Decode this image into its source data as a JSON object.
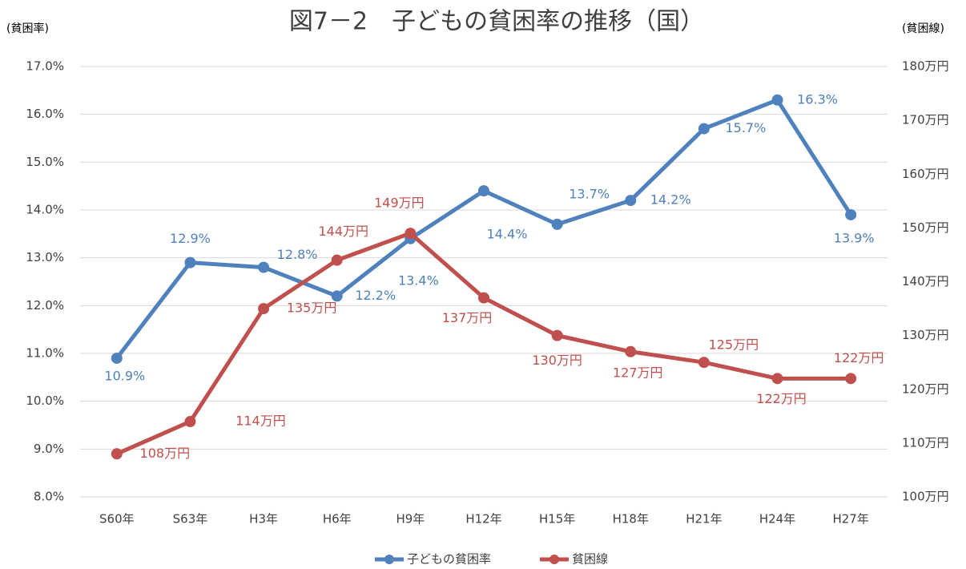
{
  "chart_data": {
    "type": "line",
    "title": "図7－2　子どもの貧困率の推移（国）",
    "y_label": "(貧困率)",
    "y2_label": "(貧困線)",
    "categories": [
      "S60年",
      "S63年",
      "H3年",
      "H6年",
      "H9年",
      "H12年",
      "H15年",
      "H18年",
      "H21年",
      "H24年",
      "H27年"
    ],
    "series": [
      {
        "name": "子どもの貧困率",
        "color": "#4f81bd",
        "values": [
          10.9,
          12.9,
          12.8,
          12.2,
          13.4,
          14.4,
          13.7,
          14.2,
          15.7,
          16.3,
          13.9
        ],
        "value_labels": [
          "10.9%",
          "12.9%",
          "12.8%",
          "12.2%",
          "13.4%",
          "14.4%",
          "13.7%",
          "14.2%",
          "15.7%",
          "16.3%",
          "13.9%"
        ]
      },
      {
        "name": "貧困線",
        "color": "#c0504d",
        "axis": "y2",
        "values": [
          108,
          114,
          135,
          144,
          149,
          137,
          130,
          127,
          125,
          122,
          122
        ],
        "value_labels": [
          "108万円",
          "114万円",
          "135万円",
          "144万円",
          "149万円",
          "137万円",
          "130万円",
          "127万円",
          "125万円",
          "122万円",
          "122万円"
        ]
      }
    ],
    "ylim": [
      8,
      17
    ],
    "yticks": [
      {
        "value": 8,
        "label": "8.0%"
      },
      {
        "value": 9,
        "label": "9.0%"
      },
      {
        "value": 10,
        "label": "10.0%"
      },
      {
        "value": 11,
        "label": "11.0%"
      },
      {
        "value": 12,
        "label": "12.0%"
      },
      {
        "value": 13,
        "label": "13.0%"
      },
      {
        "value": 14,
        "label": "14.0%"
      },
      {
        "value": 15,
        "label": "15.0%"
      },
      {
        "value": 16,
        "label": "16.0%"
      },
      {
        "value": 17,
        "label": "17.0%"
      }
    ],
    "y2lim": [
      100,
      180
    ],
    "y2ticks": [
      {
        "value": 100,
        "label": "100万円"
      },
      {
        "value": 110,
        "label": "110万円"
      },
      {
        "value": 120,
        "label": "120万円"
      },
      {
        "value": 130,
        "label": "130万円"
      },
      {
        "value": 140,
        "label": "140万円"
      },
      {
        "value": 150,
        "label": "150万円"
      },
      {
        "value": 160,
        "label": "160万円"
      },
      {
        "value": 170,
        "label": "170万円"
      },
      {
        "value": 180,
        "label": "180万円"
      }
    ],
    "grid": true,
    "legend": "bottom"
  }
}
